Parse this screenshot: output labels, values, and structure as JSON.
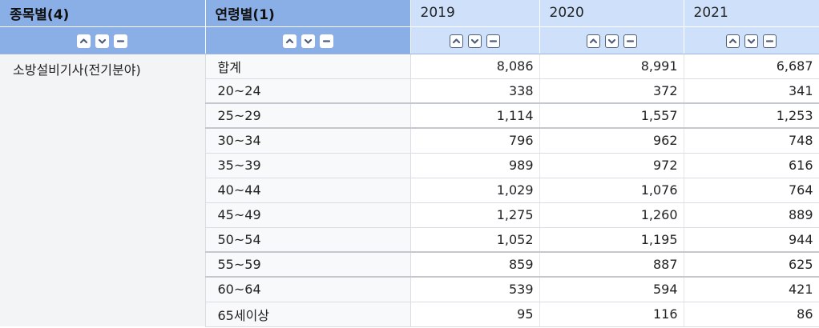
{
  "header": {
    "dim1_label": "종목별(4)",
    "dim2_label": "연령별(1)",
    "years": [
      "2019",
      "2020",
      "2021"
    ]
  },
  "controls": {
    "icons": [
      "chevron-up-icon",
      "chevron-down-icon",
      "minus-icon"
    ]
  },
  "table": {
    "group_label": "소방설비기사(전기분야)",
    "rows": [
      {
        "age": "합계",
        "values": [
          "8,086",
          "8,991",
          "6,687"
        ]
      },
      {
        "age": "20~24",
        "values": [
          "338",
          "372",
          "341"
        ]
      },
      {
        "age": "25~29",
        "values": [
          "1,114",
          "1,557",
          "1,253"
        ]
      },
      {
        "age": "30~34",
        "values": [
          "796",
          "962",
          "748"
        ]
      },
      {
        "age": "35~39",
        "values": [
          "989",
          "972",
          "616"
        ]
      },
      {
        "age": "40~44",
        "values": [
          "1,029",
          "1,076",
          "764"
        ]
      },
      {
        "age": "45~49",
        "values": [
          "1,275",
          "1,260",
          "889"
        ]
      },
      {
        "age": "50~54",
        "values": [
          "1,052",
          "1,195",
          "944"
        ]
      },
      {
        "age": "55~59",
        "values": [
          "859",
          "887",
          "625"
        ]
      },
      {
        "age": "60~64",
        "values": [
          "539",
          "594",
          "421"
        ]
      },
      {
        "age": "65세이상",
        "values": [
          "95",
          "116",
          "86"
        ]
      }
    ]
  }
}
